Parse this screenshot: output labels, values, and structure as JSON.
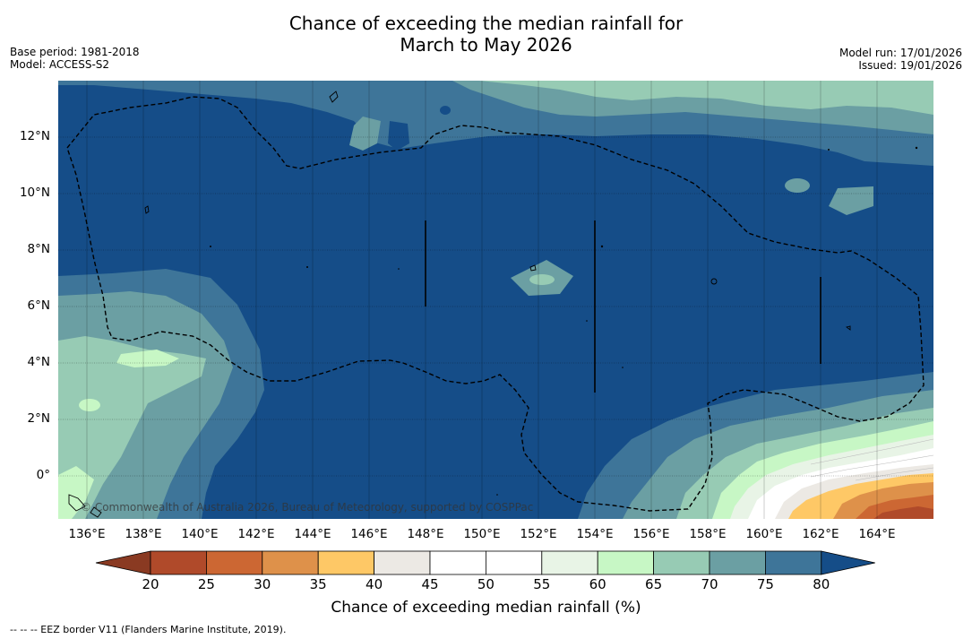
{
  "title_line1": "Chance of exceeding the median rainfall for",
  "title_line2": "March to May 2026",
  "base_period": "Base period: 1981-2018",
  "model": "Model: ACCESS-S2",
  "model_run": "Model run: 17/01/2026",
  "issued": "Issued: 19/01/2026",
  "lat_labels": [
    "12°N",
    "10°N",
    "8°N",
    "6°N",
    "4°N",
    "2°N",
    "0°"
  ],
  "lon_labels": [
    "136°E",
    "138°E",
    "140°E",
    "142°E",
    "144°E",
    "146°E",
    "148°E",
    "150°E",
    "152°E",
    "154°E",
    "156°E",
    "158°E",
    "160°E",
    "162°E",
    "164°E"
  ],
  "colorbar": {
    "ticks": [
      "20",
      "25",
      "30",
      "35",
      "40",
      "45",
      "50",
      "55",
      "60",
      "65",
      "70",
      "75",
      "80"
    ],
    "colors": [
      "#8a3a22",
      "#b04a2a",
      "#cc6733",
      "#de914a",
      "#fec866",
      "#ece9e4",
      "#ffffff",
      "#ffffff",
      "#e8f4e6",
      "#c7f7c5",
      "#97cbb4",
      "#6b9fa3",
      "#3e7599",
      "#154d88"
    ],
    "label": "Chance of exceeding median rainfall (%)"
  },
  "copyright": "© Commonwealth of Australia 2026, Bureau of Meteorology, supported by COSPPac",
  "footer": "-- -- -- EEZ border V11 (Flanders Marine Institute, 2019)."
}
